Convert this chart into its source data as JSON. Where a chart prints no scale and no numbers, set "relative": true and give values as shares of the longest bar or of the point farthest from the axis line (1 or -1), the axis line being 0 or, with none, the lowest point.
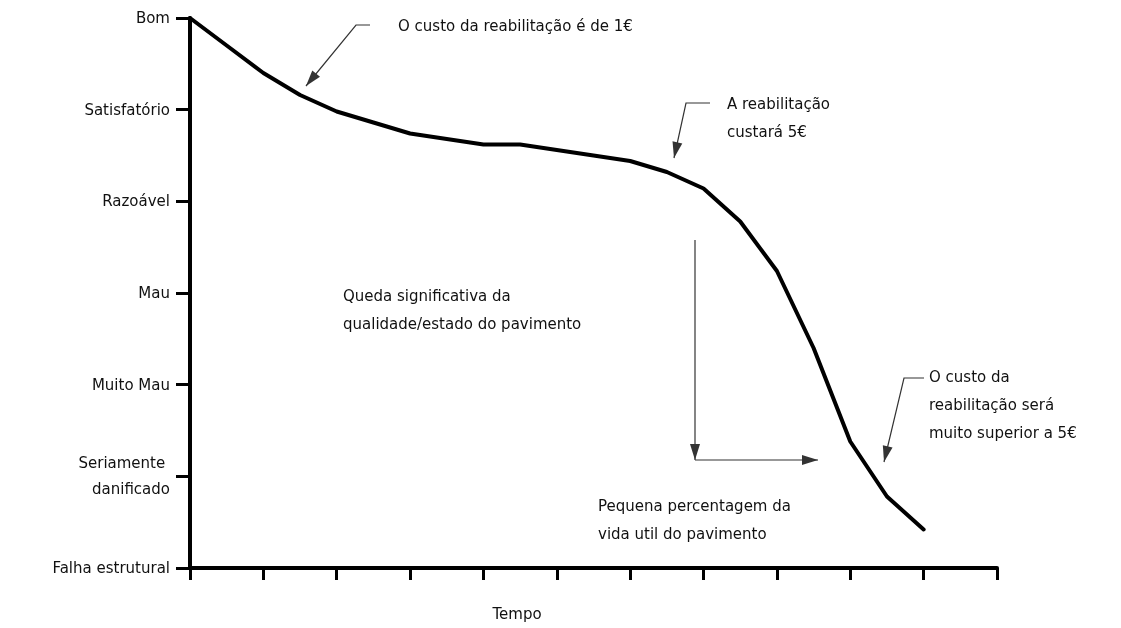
{
  "chart_data": {
    "type": "line",
    "categories": [
      null,
      null,
      null,
      null,
      null,
      null,
      null,
      null,
      null,
      null,
      null,
      null,
      null,
      null,
      null,
      null,
      null,
      null,
      null,
      null,
      null,
      null,
      null
    ],
    "values": [
      1,
      0.95,
      0.9,
      0.86,
      0.83,
      0.81,
      0.79,
      0.78,
      0.77,
      0.77,
      0.76,
      0.75,
      0.74,
      0.72,
      0.69,
      0.63,
      0.54,
      0.4,
      0.23,
      0.13,
      0.07,
      null,
      null
    ],
    "relative": true,
    "color": "#000000",
    "marker": "none",
    "y_categories": [
      "Bom",
      "Satisfatório",
      "Razoável",
      "Mau",
      "Muito Mau",
      "Seriamente danificado",
      "Falha estrutural"
    ],
    "xlabel": "Tempo",
    "annotations": [
      "O custo da reabilitação é de 1€",
      "A reabilitação custará 5€",
      "O custo da reabilitação será muito superior a 5€",
      "Queda significativa da qualidade/estado do pavimento",
      "Pequena percentagem da vida util do pavimento"
    ]
  }
}
